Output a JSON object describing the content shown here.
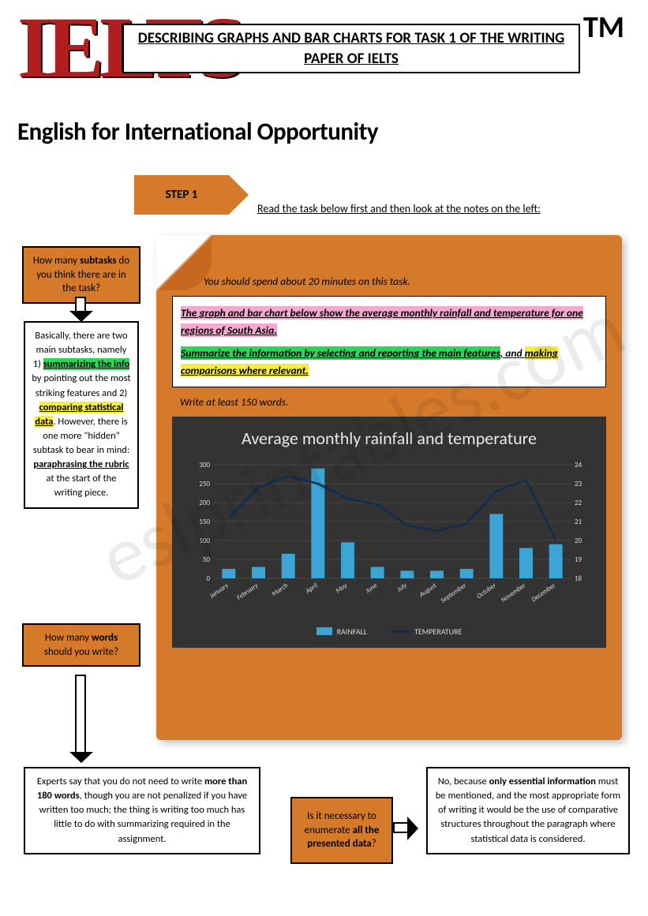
{
  "logo_text": "IELTS",
  "tm": "TM",
  "title": "DESCRIBING GRAPHS AND BAR CHARTS FOR TASK 1 OF THE WRITING PAPER OF IELTS",
  "subtitle": "English for International Opportunity",
  "step_label": "STEP 1",
  "read_task": "Read the task below first and then look at the notes on the left:",
  "q1_a": "How many ",
  "q1_b": "subtasks",
  "q1_c": " do you think there are in the task?",
  "info1_intro": "Basically, there are two main subtasks, namely 1) ",
  "info1_s1": "summarizing the info",
  "info1_mid": " by pointing out the most striking features and 2) ",
  "info1_s2": "comparing statistical data",
  "info1_hidden": ". However, there is one more \"hidden\" subtask to bear in mind: ",
  "info1_s3": "paraphrasing the rubric",
  "info1_end": " at the start of the writing piece.",
  "q2_a": "How many ",
  "q2_b": "words",
  "q2_c": " should you write?",
  "scroll": {
    "spend": "You should spend about 20 minutes on this task.",
    "rubric1": "The graph and bar chart below show the average monthly rainfall and temperature for one regions of South Asia.",
    "rubric2a": "Summarize the information by selecting and reporting the main features",
    "rubric2b": ", and ",
    "rubric2c": "making comparisons where relevant.",
    "write": "Write at least 150 words."
  },
  "chart": {
    "title": "Average monthly rainfall and temperature",
    "months": [
      "January",
      "February",
      "March",
      "April",
      "May",
      "June",
      "July",
      "August",
      "September",
      "October",
      "November",
      "December"
    ],
    "rainfall": [
      25,
      30,
      65,
      290,
      95,
      30,
      20,
      20,
      25,
      170,
      80,
      90
    ],
    "temperature": [
      21.2,
      22.8,
      23.4,
      23.0,
      22.2,
      21.9,
      20.8,
      20.5,
      20.9,
      22.6,
      23.2,
      20.0
    ],
    "left_ticks": [
      0,
      50,
      100,
      150,
      200,
      250,
      300
    ],
    "right_ticks": [
      18,
      19,
      20,
      21,
      22,
      23,
      24
    ],
    "bar_color": "#3ca5d4",
    "line_color": "#0f2d52",
    "grid_color": "#5a5a5a",
    "bg_color": "#333333",
    "text_color": "#d9d9d9",
    "legend_rain": "RAINFALL",
    "legend_temp": "TEMPERATURE"
  },
  "info2_a": "Experts say that you do not need to write ",
  "info2_b": "more than 180 words",
  "info2_c": ", though you are not penalized if you have written too much; the thing is writing too much has little to do with summarizing required in the assignment.",
  "q3_a": "Is it necessary to enumerate ",
  "q3_b": "all the presented data",
  "q3_c": "?",
  "info3_a": "No, because ",
  "info3_b": "only essential information",
  "info3_c": " must be mentioned, and the most appropriate form of writing it would be the use of comparative structures throughout the paragraph where statistical data is considered.",
  "watermark": "eslprintables.com"
}
